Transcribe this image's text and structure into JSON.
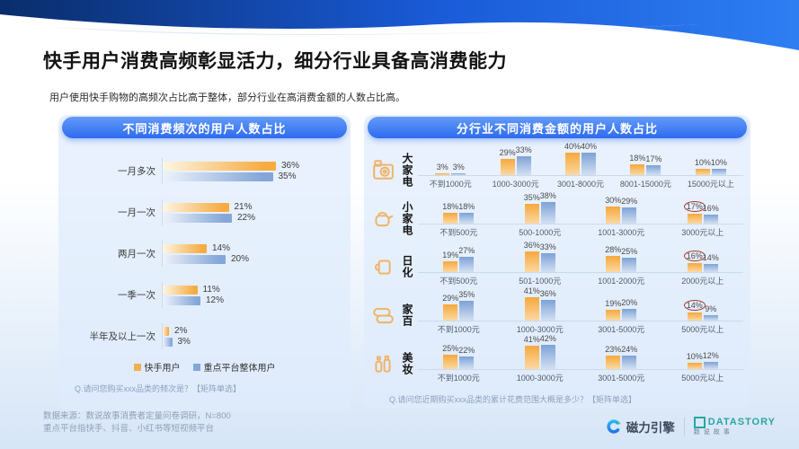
{
  "slide": {
    "title": "快手用户消费高频彰显活力，细分行业具备高消费能力",
    "subtitle": "用户使用快手购物的高频次占比高于整体，部分行业在高消费金额的人数占比高。",
    "source_line1": "数据来源：数说故事消费者定量问卷调研，N=800",
    "source_line2": "重点平台指快手、抖音、小红书等短视频平台"
  },
  "colors": {
    "kuaishou_orange": "#F2B04D",
    "platform_blue": "#84A6D8",
    "header_pill_blue": "#2E6BEF",
    "highlight_circle_red": "#A9382C"
  },
  "left_panel": {
    "header": "不同消费频次的用户人数占比",
    "legend": [
      {
        "label": "快手用户",
        "color": "#F2B04D"
      },
      {
        "label": "重点平台整体用户",
        "color": "#84A6D8"
      }
    ],
    "footnote": "Q.请问您购买xxx品类的频次是？【矩阵单选】"
  },
  "right_panel": {
    "header": "分行业不同消费金额的用户人数占比",
    "footnote": "Q.请问您近期购买xxx品类的累计花费范围大概是多少？【矩阵单选】"
  },
  "logos": {
    "cili_text": "磁力引擎",
    "datastory_text": "DATASTORY",
    "datastory_sub": "数说故事"
  },
  "chart_data": [
    {
      "type": "bar",
      "orientation": "horizontal",
      "title": "不同消费频次的用户人数占比",
      "unit": "%",
      "xlim": [
        0,
        40
      ],
      "categories": [
        "一月多次",
        "一月一次",
        "两月一次",
        "一季一次",
        "半年及以上一次"
      ],
      "series": [
        {
          "name": "快手用户",
          "values": [
            36,
            21,
            14,
            11,
            2
          ]
        },
        {
          "name": "重点平台整体用户",
          "values": [
            35,
            22,
            20,
            12,
            3
          ]
        }
      ],
      "legend_position": "bottom"
    },
    {
      "type": "bar",
      "orientation": "vertical",
      "title": "分行业不同消费金额的用户人数占比",
      "unit": "%",
      "series_names": [
        "快手用户",
        "重点平台整体用户"
      ],
      "rows": [
        {
          "industry": "大家电",
          "icon": "washing-machine-icon",
          "groups": [
            {
              "label": "不到1000元",
              "kuaishou": 3,
              "platform": 3
            },
            {
              "label": "1000-3000元",
              "kuaishou": 29,
              "platform": 33
            },
            {
              "label": "3001-8000元",
              "kuaishou": 40,
              "platform": 40
            },
            {
              "label": "8001-15000元",
              "kuaishou": 18,
              "platform": 17
            },
            {
              "label": "15000元以上",
              "kuaishou": 10,
              "platform": 10
            }
          ]
        },
        {
          "industry": "小家电",
          "icon": "kettle-icon",
          "groups": [
            {
              "label": "不到500元",
              "kuaishou": 18,
              "platform": 18
            },
            {
              "label": "500-1000元",
              "kuaishou": 35,
              "platform": 38
            },
            {
              "label": "1001-3000元",
              "kuaishou": 30,
              "platform": 29
            },
            {
              "label": "3000元以上",
              "kuaishou": 17,
              "platform": 16,
              "highlight": true
            }
          ]
        },
        {
          "industry": "日化",
          "icon": "mug-icon",
          "groups": [
            {
              "label": "不到500元",
              "kuaishou": 19,
              "platform": 27
            },
            {
              "label": "501-1000元",
              "kuaishou": 36,
              "platform": 33
            },
            {
              "label": "1001-2000元",
              "kuaishou": 28,
              "platform": 25
            },
            {
              "label": "2000元以上",
              "kuaishou": 16,
              "platform": 14,
              "highlight": true
            }
          ]
        },
        {
          "industry": "家百",
          "icon": "towels-icon",
          "groups": [
            {
              "label": "不到1000元",
              "kuaishou": 29,
              "platform": 35
            },
            {
              "label": "1000-3000元",
              "kuaishou": 41,
              "platform": 36
            },
            {
              "label": "3001-5000元",
              "kuaishou": 19,
              "platform": 20
            },
            {
              "label": "5000元以上",
              "kuaishou": 14,
              "platform": 9,
              "highlight": true
            }
          ]
        },
        {
          "industry": "美妆",
          "icon": "cosmetics-icon",
          "groups": [
            {
              "label": "不到1000元",
              "kuaishou": 25,
              "platform": 22
            },
            {
              "label": "1000-3000元",
              "kuaishou": 41,
              "platform": 42
            },
            {
              "label": "3001-5000元",
              "kuaishou": 23,
              "platform": 24
            },
            {
              "label": "5000元以上",
              "kuaishou": 10,
              "platform": 12
            }
          ]
        }
      ]
    }
  ]
}
